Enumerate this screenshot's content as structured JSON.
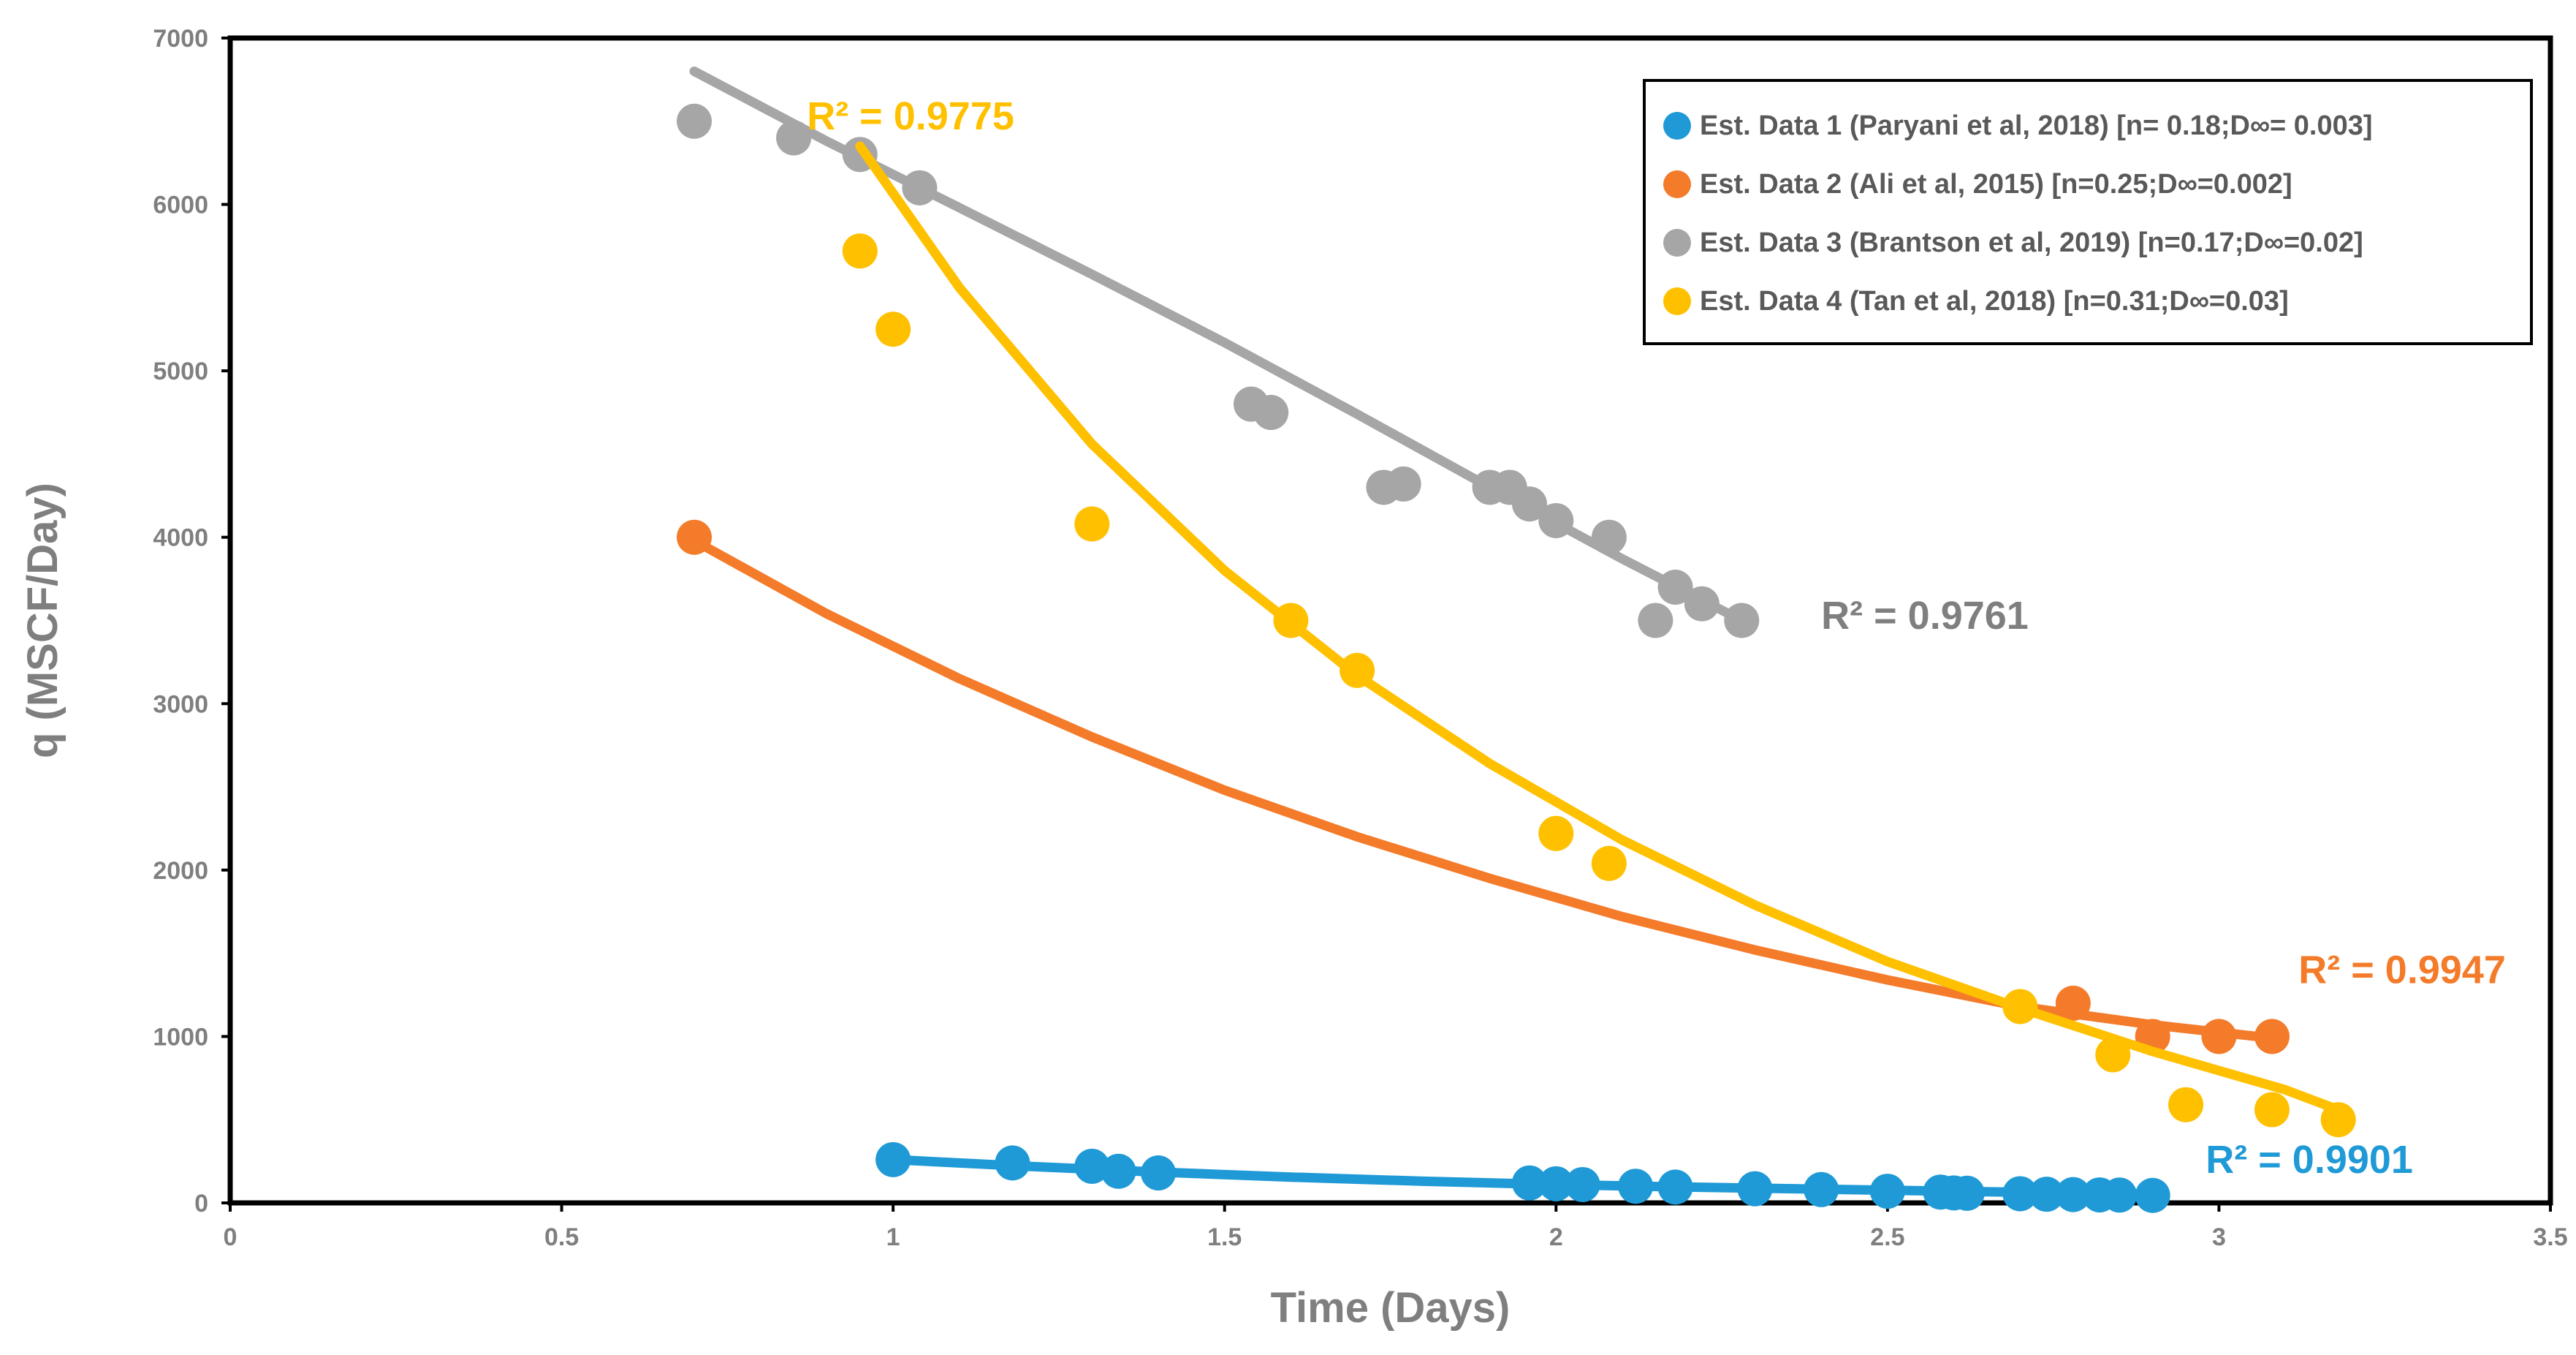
{
  "chart_data": {
    "type": "scatter",
    "title": "",
    "xlabel": "Time (Days)",
    "ylabel": "q (MSCF/Day)",
    "xlim": [
      0,
      3.5
    ],
    "ylim": [
      0,
      7000
    ],
    "x_ticks": [
      "0",
      "0.5",
      "1",
      "1.5",
      "2",
      "2.5",
      "3",
      "3.5"
    ],
    "y_ticks": [
      "0",
      "1000",
      "2000",
      "3000",
      "4000",
      "5000",
      "6000",
      "7000"
    ],
    "grid": false,
    "legend_position": "top-right",
    "series": [
      {
        "name": "Est. Data 1 (Paryani et al, 2018) [n= 0.18;D∞= 0.003]",
        "color": "#1f9ad6",
        "points": [
          [
            1.0,
            260
          ],
          [
            1.18,
            240
          ],
          [
            1.3,
            220
          ],
          [
            1.34,
            190
          ],
          [
            1.4,
            180
          ],
          [
            1.96,
            120
          ],
          [
            2.0,
            115
          ],
          [
            2.04,
            110
          ],
          [
            2.12,
            100
          ],
          [
            2.18,
            95
          ],
          [
            2.3,
            85
          ],
          [
            2.4,
            80
          ],
          [
            2.5,
            70
          ],
          [
            2.58,
            65
          ],
          [
            2.6,
            60
          ],
          [
            2.62,
            58
          ],
          [
            2.7,
            55
          ],
          [
            2.74,
            52
          ],
          [
            2.78,
            50
          ],
          [
            2.82,
            48
          ],
          [
            2.85,
            47
          ],
          [
            2.9,
            45
          ]
        ],
        "trendline": [
          [
            1.0,
            260
          ],
          [
            1.2,
            220
          ],
          [
            1.4,
            185
          ],
          [
            1.6,
            155
          ],
          [
            1.8,
            130
          ],
          [
            2.0,
            110
          ],
          [
            2.2,
            95
          ],
          [
            2.4,
            82
          ],
          [
            2.6,
            70
          ],
          [
            2.8,
            58
          ],
          [
            2.9,
            52
          ]
        ],
        "r2": "R² = 0.9901",
        "r2_anchor": [
          2.98,
          180
        ]
      },
      {
        "name": "Est. Data 2 (Ali et al, 2015) [n=0.25;D∞=0.002]",
        "color": "#f47b2a",
        "points": [
          [
            0.7,
            4000
          ],
          [
            2.78,
            1200
          ],
          [
            2.9,
            1000
          ],
          [
            3.0,
            1000
          ],
          [
            3.08,
            1000
          ]
        ],
        "trendline": [
          [
            0.7,
            3980
          ],
          [
            0.9,
            3540
          ],
          [
            1.1,
            3150
          ],
          [
            1.3,
            2800
          ],
          [
            1.5,
            2480
          ],
          [
            1.7,
            2200
          ],
          [
            1.9,
            1950
          ],
          [
            2.1,
            1720
          ],
          [
            2.3,
            1520
          ],
          [
            2.5,
            1340
          ],
          [
            2.7,
            1180
          ],
          [
            2.9,
            1070
          ],
          [
            3.08,
            990
          ]
        ],
        "r2": "R² = 0.9947",
        "r2_anchor": [
          3.12,
          1320
        ]
      },
      {
        "name": "Est. Data 3 (Brantson et al, 2019) [n=0.17;D∞=0.02]",
        "color": "#a6a6a6",
        "points": [
          [
            0.7,
            6500
          ],
          [
            0.85,
            6400
          ],
          [
            0.95,
            6300
          ],
          [
            1.04,
            6100
          ],
          [
            1.54,
            4800
          ],
          [
            1.57,
            4750
          ],
          [
            1.74,
            4300
          ],
          [
            1.77,
            4320
          ],
          [
            1.9,
            4300
          ],
          [
            1.93,
            4300
          ],
          [
            1.96,
            4200
          ],
          [
            2.0,
            4100
          ],
          [
            2.08,
            4000
          ],
          [
            2.18,
            3700
          ],
          [
            2.15,
            3500
          ],
          [
            2.22,
            3600
          ],
          [
            2.28,
            3500
          ]
        ],
        "trendline": [
          [
            0.7,
            6800
          ],
          [
            0.9,
            6380
          ],
          [
            1.1,
            5980
          ],
          [
            1.3,
            5580
          ],
          [
            1.5,
            5170
          ],
          [
            1.7,
            4740
          ],
          [
            1.9,
            4300
          ],
          [
            2.1,
            3870
          ],
          [
            2.28,
            3500
          ]
        ],
        "r2": "R² = 0.9761",
        "r2_anchor": [
          2.4,
          3450
        ]
      },
      {
        "name": "Est. Data 4 (Tan et al, 2018) [n=0.31;D∞=0.03]",
        "color": "#ffc000",
        "points": [
          [
            0.95,
            5720
          ],
          [
            1.0,
            5250
          ],
          [
            1.3,
            4080
          ],
          [
            1.6,
            3500
          ],
          [
            1.7,
            3200
          ],
          [
            2.0,
            2220
          ],
          [
            2.08,
            2040
          ],
          [
            2.7,
            1180
          ],
          [
            2.84,
            890
          ],
          [
            2.95,
            590
          ],
          [
            3.08,
            560
          ],
          [
            3.18,
            500
          ]
        ],
        "trendline": [
          [
            0.95,
            6350
          ],
          [
            1.1,
            5500
          ],
          [
            1.3,
            4560
          ],
          [
            1.5,
            3800
          ],
          [
            1.7,
            3170
          ],
          [
            1.9,
            2640
          ],
          [
            2.1,
            2180
          ],
          [
            2.3,
            1790
          ],
          [
            2.5,
            1450
          ],
          [
            2.7,
            1170
          ],
          [
            2.9,
            910
          ],
          [
            3.1,
            680
          ],
          [
            3.18,
            560
          ]
        ],
        "r2": "R² = 0.9775",
        "r2_anchor": [
          0.87,
          6450
        ]
      }
    ]
  }
}
